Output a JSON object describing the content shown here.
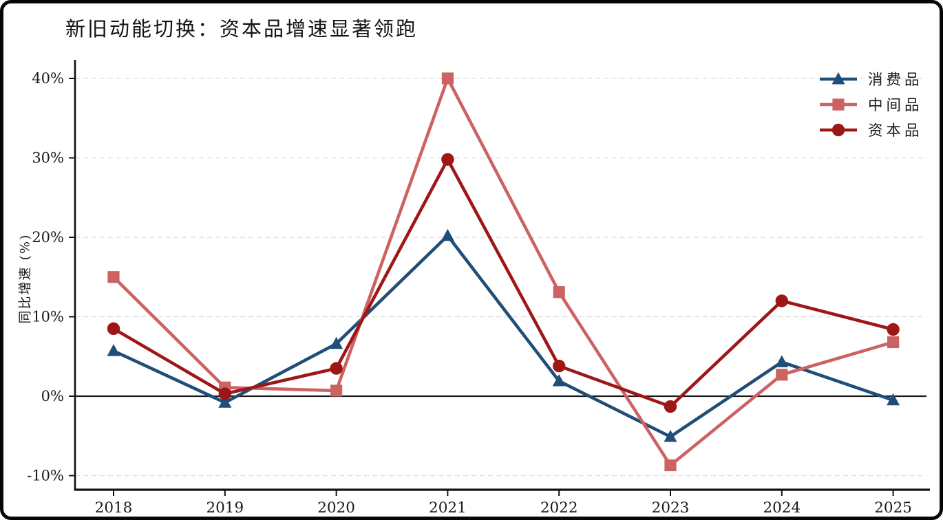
{
  "chart_data": {
    "type": "line",
    "title": "新旧动能切换：资本品增速显著领跑",
    "xlabel": "",
    "ylabel": "同比增速 (%)",
    "categories": [
      "2018",
      "2019",
      "2020",
      "2021",
      "2022",
      "2023",
      "2024",
      "2025"
    ],
    "series": [
      {
        "name": "消费品",
        "marker": "triangle",
        "color": "#1f4e79",
        "values": [
          5.7,
          -0.8,
          6.6,
          20.2,
          1.9,
          -5.1,
          4.3,
          -0.5
        ]
      },
      {
        "name": "中间品",
        "marker": "square",
        "color": "#cd6262",
        "values": [
          15.0,
          1.1,
          0.7,
          40.0,
          13.1,
          -8.7,
          2.7,
          6.8
        ]
      },
      {
        "name": "资本品",
        "marker": "circle",
        "color": "#9e1717",
        "values": [
          8.5,
          0.3,
          3.5,
          29.8,
          3.8,
          -1.3,
          12.0,
          8.4
        ]
      }
    ],
    "y_ticks": [
      {
        "label": "40%",
        "value": 40
      },
      {
        "label": "30%",
        "value": 30
      },
      {
        "label": "20%",
        "value": 20
      },
      {
        "label": "10%",
        "value": 10
      },
      {
        "label": "0%",
        "value": 0
      },
      {
        "label": "-10%",
        "value": -10
      }
    ],
    "ylim": [
      -12,
      42.5
    ],
    "grid": "horizontal-dashed",
    "zero_line": true,
    "legend_position": "upper-right",
    "colors": {
      "grid": "#e0e0e0",
      "axis": "#111111",
      "zero_line": "#1a1a1a",
      "text": "#1a1a1a",
      "background": "#ffffff",
      "frame_border": "#060606"
    }
  }
}
